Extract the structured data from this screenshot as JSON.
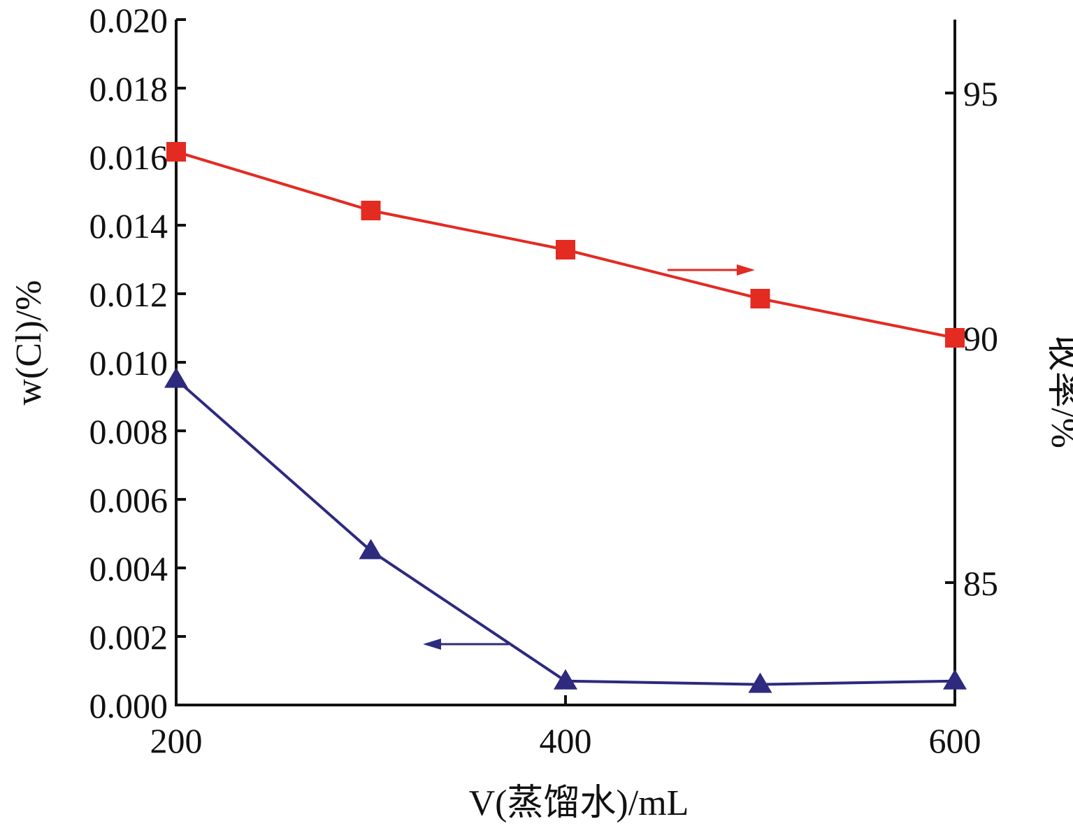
{
  "chart_data": {
    "type": "line",
    "xlabel": "V(蒸馏水)/mL",
    "ylabel_left": "w(Cl)/%",
    "ylabel_right": "收率/%",
    "xlim": [
      200,
      600
    ],
    "ylim_left": [
      0,
      0.02
    ],
    "ylim_right": [
      82.5,
      96.5
    ],
    "x_ticks": [
      200,
      400,
      600
    ],
    "y_ticks_left": [
      "0.000",
      "0.002",
      "0.004",
      "0.006",
      "0.008",
      "0.010",
      "0.012",
      "0.014",
      "0.016",
      "0.018",
      "0.020"
    ],
    "y_ticks_right": [
      85,
      90,
      95
    ],
    "grid": false,
    "series": [
      {
        "axis": "right",
        "marker": "square",
        "color": "#e32b22",
        "x": [
          200,
          300,
          400,
          500,
          600
        ],
        "y": [
          93.8,
          92.6,
          91.8,
          90.8,
          90.0
        ]
      },
      {
        "axis": "left",
        "marker": "triangle",
        "color": "#2e2a7e",
        "x": [
          200,
          300,
          400,
          500,
          600
        ],
        "y": [
          0.0095,
          0.0045,
          0.0007,
          0.0006,
          0.0007
        ]
      }
    ],
    "annotations": [
      {
        "type": "arrow",
        "direction": "right",
        "series": 0,
        "color": "#e32b22"
      },
      {
        "type": "arrow",
        "direction": "left",
        "series": 1,
        "color": "#2e2a7e"
      }
    ]
  }
}
